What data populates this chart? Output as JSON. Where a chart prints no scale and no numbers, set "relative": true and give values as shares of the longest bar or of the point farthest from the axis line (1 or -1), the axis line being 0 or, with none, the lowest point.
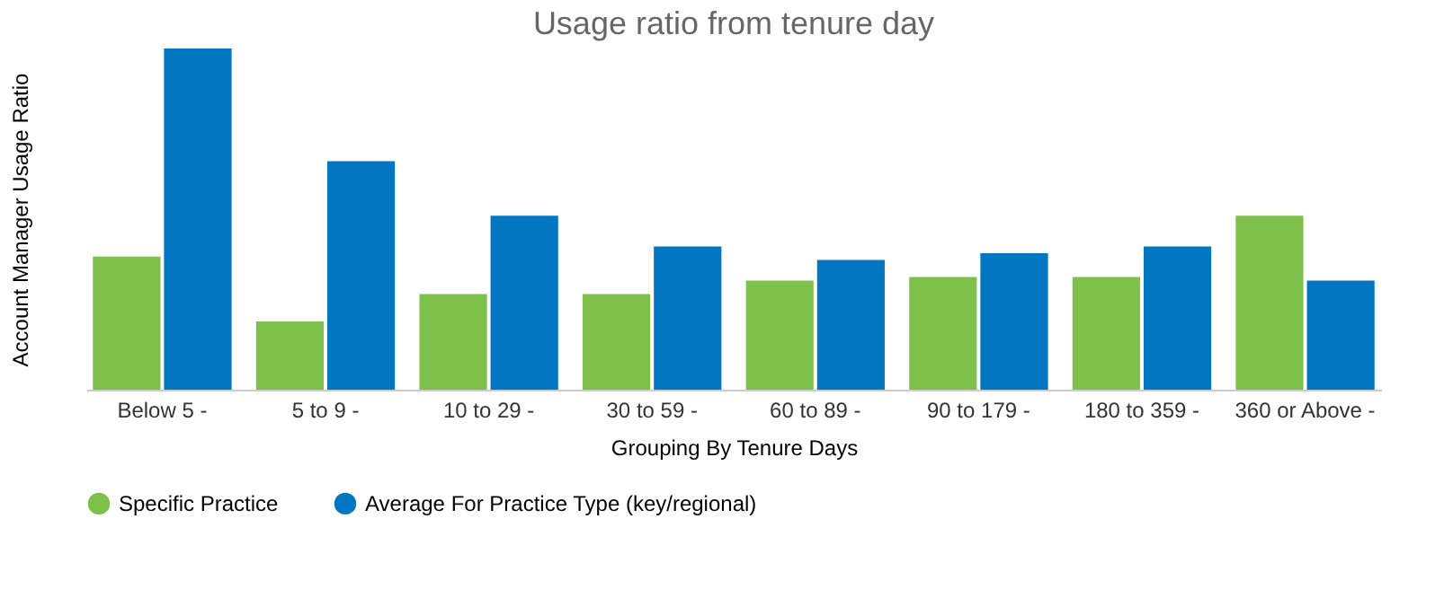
{
  "chart_data": {
    "type": "bar",
    "title": "Usage ratio from tenure day",
    "xlabel": "Grouping By Tenure Days",
    "ylabel": "Account Manager Usage Ratio",
    "relative": true,
    "legend": "bottom",
    "categories": [
      "Below 5 -",
      "5 to 9 -",
      "10 to 29 -",
      "30 to 59 -",
      "60 to 89 -",
      "90 to 179 -",
      "180 to 359 -",
      "360 or Above -"
    ],
    "series": [
      {
        "name": "Specific Practice",
        "color": "#7dc14a",
        "values": [
          0.39,
          0.2,
          0.28,
          0.28,
          0.32,
          0.33,
          0.33,
          0.51
        ]
      },
      {
        "name": "Average For Practice Type (key/regional)",
        "color": "#0077c0",
        "values": [
          1,
          0.67,
          0.51,
          0.42,
          0.38,
          0.4,
          0.42,
          0.32
        ]
      }
    ]
  }
}
